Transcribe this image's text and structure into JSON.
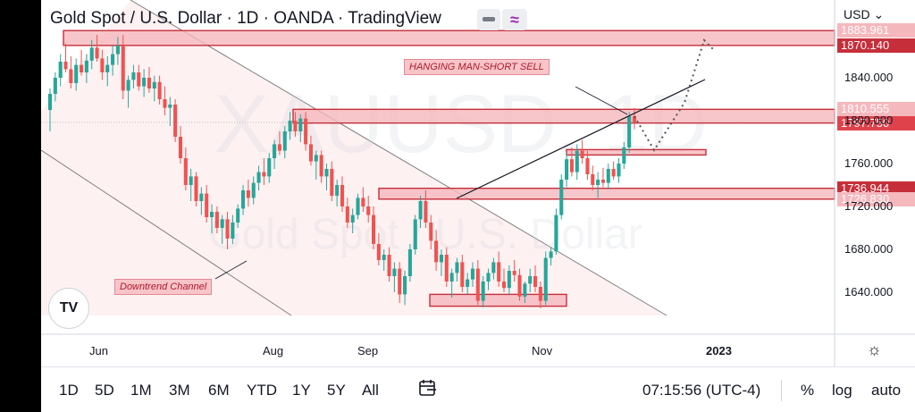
{
  "header": {
    "title": "Gold Spot / U.S. Dollar · 1D · OANDA · TradingView",
    "currency": "USD",
    "watermark_symbol": "XAUUSD, 1D",
    "watermark_name": "Gold Spot / U.S. Dollar"
  },
  "annotations": {
    "hanging_man": "HANGING MAN-SHORT SELL",
    "downtrend": "Downtrend Channel"
  },
  "price_labels": [
    {
      "value": "1883.961",
      "color": "#f5b8bd",
      "text_color": "#ffffff"
    },
    {
      "value": "1870.140",
      "color": "#c62f3a",
      "text_color": "#ffffff"
    },
    {
      "value": "1810.555",
      "color": "#f5b8bd",
      "text_color": "#ffffff"
    },
    {
      "value": "1797.750",
      "color": "#e0424c",
      "text_color": "#ffffff"
    },
    {
      "value": "1736.944",
      "color": "#c62f3a",
      "text_color": "#ffffff"
    },
    {
      "value": "1726.830",
      "color": "#f5b8bd",
      "text_color": "#ffffff"
    }
  ],
  "toolbar": {
    "ranges": [
      "1D",
      "5D",
      "1M",
      "3M",
      "6M",
      "YTD",
      "1Y",
      "5Y",
      "All"
    ],
    "time": "07:15:56 (UTC-4)",
    "percent": "%",
    "log": "log",
    "auto": "auto"
  },
  "chart_data": {
    "type": "candlestick",
    "y_ticks": [
      "1840.000",
      "1800.000",
      "1760.000",
      "1720.000",
      "1680.000",
      "1640.000"
    ],
    "y_tick_values": [
      1840,
      1800,
      1760,
      1720,
      1680,
      1640
    ],
    "x_ticks": [
      "Jun",
      "Aug",
      "Sep",
      "Nov",
      "2023"
    ],
    "colors": {
      "up": "#26a69a",
      "down": "#ef5350",
      "zone": "#f5b8bd",
      "zone_border": "#c62f3a"
    },
    "zones": [
      {
        "low": 1870.14,
        "high": 1883.961
      },
      {
        "low": 1797.75,
        "high": 1810.555
      },
      {
        "low": 1726.83,
        "high": 1736.944
      },
      {
        "low": 1627,
        "high": 1638
      },
      {
        "low": 1768,
        "high": 1773
      }
    ],
    "candles": [
      {
        "o": 1810,
        "h": 1830,
        "l": 1790,
        "c": 1825
      },
      {
        "o": 1825,
        "h": 1845,
        "l": 1818,
        "c": 1840
      },
      {
        "o": 1840,
        "h": 1862,
        "l": 1832,
        "c": 1855
      },
      {
        "o": 1855,
        "h": 1872,
        "l": 1845,
        "c": 1848
      },
      {
        "o": 1848,
        "h": 1860,
        "l": 1830,
        "c": 1835
      },
      {
        "o": 1835,
        "h": 1858,
        "l": 1828,
        "c": 1852
      },
      {
        "o": 1852,
        "h": 1866,
        "l": 1842,
        "c": 1845
      },
      {
        "o": 1845,
        "h": 1862,
        "l": 1835,
        "c": 1856
      },
      {
        "o": 1856,
        "h": 1875,
        "l": 1848,
        "c": 1868
      },
      {
        "o": 1868,
        "h": 1880,
        "l": 1855,
        "c": 1858
      },
      {
        "o": 1858,
        "h": 1866,
        "l": 1838,
        "c": 1845
      },
      {
        "o": 1845,
        "h": 1860,
        "l": 1832,
        "c": 1852
      },
      {
        "o": 1852,
        "h": 1870,
        "l": 1842,
        "c": 1862
      },
      {
        "o": 1862,
        "h": 1878,
        "l": 1852,
        "c": 1870
      },
      {
        "o": 1870,
        "h": 1880,
        "l": 1820,
        "c": 1828
      },
      {
        "o": 1828,
        "h": 1842,
        "l": 1812,
        "c": 1838
      },
      {
        "o": 1838,
        "h": 1852,
        "l": 1830,
        "c": 1845
      },
      {
        "o": 1845,
        "h": 1852,
        "l": 1828,
        "c": 1832
      },
      {
        "o": 1832,
        "h": 1848,
        "l": 1822,
        "c": 1840
      },
      {
        "o": 1840,
        "h": 1850,
        "l": 1826,
        "c": 1830
      },
      {
        "o": 1830,
        "h": 1842,
        "l": 1818,
        "c": 1836
      },
      {
        "o": 1836,
        "h": 1842,
        "l": 1815,
        "c": 1820
      },
      {
        "o": 1820,
        "h": 1832,
        "l": 1805,
        "c": 1812
      },
      {
        "o": 1812,
        "h": 1822,
        "l": 1795,
        "c": 1815
      },
      {
        "o": 1815,
        "h": 1820,
        "l": 1780,
        "c": 1785
      },
      {
        "o": 1785,
        "h": 1795,
        "l": 1760,
        "c": 1765
      },
      {
        "o": 1765,
        "h": 1775,
        "l": 1735,
        "c": 1740
      },
      {
        "o": 1740,
        "h": 1755,
        "l": 1725,
        "c": 1748
      },
      {
        "o": 1748,
        "h": 1752,
        "l": 1720,
        "c": 1725
      },
      {
        "o": 1725,
        "h": 1738,
        "l": 1712,
        "c": 1732
      },
      {
        "o": 1732,
        "h": 1740,
        "l": 1705,
        "c": 1710
      },
      {
        "o": 1710,
        "h": 1722,
        "l": 1695,
        "c": 1715
      },
      {
        "o": 1715,
        "h": 1720,
        "l": 1695,
        "c": 1700
      },
      {
        "o": 1700,
        "h": 1712,
        "l": 1685,
        "c": 1708
      },
      {
        "o": 1708,
        "h": 1715,
        "l": 1680,
        "c": 1690
      },
      {
        "o": 1690,
        "h": 1712,
        "l": 1685,
        "c": 1705
      },
      {
        "o": 1705,
        "h": 1722,
        "l": 1700,
        "c": 1718
      },
      {
        "o": 1718,
        "h": 1740,
        "l": 1712,
        "c": 1735
      },
      {
        "o": 1735,
        "h": 1745,
        "l": 1720,
        "c": 1728
      },
      {
        "o": 1728,
        "h": 1748,
        "l": 1722,
        "c": 1742
      },
      {
        "o": 1742,
        "h": 1758,
        "l": 1735,
        "c": 1752
      },
      {
        "o": 1752,
        "h": 1765,
        "l": 1740,
        "c": 1748
      },
      {
        "o": 1748,
        "h": 1770,
        "l": 1742,
        "c": 1765
      },
      {
        "o": 1765,
        "h": 1782,
        "l": 1755,
        "c": 1778
      },
      {
        "o": 1778,
        "h": 1790,
        "l": 1768,
        "c": 1772
      },
      {
        "o": 1772,
        "h": 1795,
        "l": 1765,
        "c": 1790
      },
      {
        "o": 1790,
        "h": 1808,
        "l": 1782,
        "c": 1800
      },
      {
        "o": 1800,
        "h": 1808,
        "l": 1785,
        "c": 1790
      },
      {
        "o": 1790,
        "h": 1806,
        "l": 1780,
        "c": 1802
      },
      {
        "o": 1802,
        "h": 1808,
        "l": 1772,
        "c": 1778
      },
      {
        "o": 1778,
        "h": 1786,
        "l": 1758,
        "c": 1762
      },
      {
        "o": 1762,
        "h": 1772,
        "l": 1745,
        "c": 1768
      },
      {
        "o": 1768,
        "h": 1772,
        "l": 1742,
        "c": 1748
      },
      {
        "o": 1748,
        "h": 1760,
        "l": 1735,
        "c": 1755
      },
      {
        "o": 1755,
        "h": 1762,
        "l": 1725,
        "c": 1730
      },
      {
        "o": 1730,
        "h": 1745,
        "l": 1720,
        "c": 1740
      },
      {
        "o": 1740,
        "h": 1748,
        "l": 1715,
        "c": 1720
      },
      {
        "o": 1720,
        "h": 1728,
        "l": 1700,
        "c": 1705
      },
      {
        "o": 1705,
        "h": 1718,
        "l": 1695,
        "c": 1712
      },
      {
        "o": 1712,
        "h": 1732,
        "l": 1708,
        "c": 1728
      },
      {
        "o": 1728,
        "h": 1738,
        "l": 1715,
        "c": 1720
      },
      {
        "o": 1720,
        "h": 1730,
        "l": 1705,
        "c": 1712
      },
      {
        "o": 1712,
        "h": 1720,
        "l": 1680,
        "c": 1685
      },
      {
        "o": 1685,
        "h": 1695,
        "l": 1665,
        "c": 1670
      },
      {
        "o": 1670,
        "h": 1680,
        "l": 1660,
        "c": 1675
      },
      {
        "o": 1675,
        "h": 1682,
        "l": 1650,
        "c": 1655
      },
      {
        "o": 1655,
        "h": 1668,
        "l": 1640,
        "c": 1662
      },
      {
        "o": 1662,
        "h": 1668,
        "l": 1630,
        "c": 1638
      },
      {
        "o": 1638,
        "h": 1660,
        "l": 1628,
        "c": 1655
      },
      {
        "o": 1655,
        "h": 1685,
        "l": 1650,
        "c": 1680
      },
      {
        "o": 1680,
        "h": 1712,
        "l": 1675,
        "c": 1708
      },
      {
        "o": 1708,
        "h": 1730,
        "l": 1700,
        "c": 1725
      },
      {
        "o": 1725,
        "h": 1735,
        "l": 1700,
        "c": 1705
      },
      {
        "o": 1705,
        "h": 1712,
        "l": 1680,
        "c": 1688
      },
      {
        "o": 1688,
        "h": 1698,
        "l": 1660,
        "c": 1668
      },
      {
        "o": 1668,
        "h": 1680,
        "l": 1655,
        "c": 1675
      },
      {
        "o": 1675,
        "h": 1682,
        "l": 1645,
        "c": 1650
      },
      {
        "o": 1650,
        "h": 1662,
        "l": 1635,
        "c": 1658
      },
      {
        "o": 1658,
        "h": 1672,
        "l": 1650,
        "c": 1668
      },
      {
        "o": 1668,
        "h": 1675,
        "l": 1640,
        "c": 1645
      },
      {
        "o": 1645,
        "h": 1658,
        "l": 1638,
        "c": 1652
      },
      {
        "o": 1652,
        "h": 1668,
        "l": 1645,
        "c": 1662
      },
      {
        "o": 1662,
        "h": 1670,
        "l": 1628,
        "c": 1632
      },
      {
        "o": 1632,
        "h": 1655,
        "l": 1626,
        "c": 1650
      },
      {
        "o": 1650,
        "h": 1662,
        "l": 1642,
        "c": 1658
      },
      {
        "o": 1658,
        "h": 1672,
        "l": 1652,
        "c": 1668
      },
      {
        "o": 1668,
        "h": 1678,
        "l": 1645,
        "c": 1650
      },
      {
        "o": 1650,
        "h": 1662,
        "l": 1640,
        "c": 1644
      },
      {
        "o": 1644,
        "h": 1665,
        "l": 1638,
        "c": 1660
      },
      {
        "o": 1660,
        "h": 1670,
        "l": 1650,
        "c": 1656
      },
      {
        "o": 1656,
        "h": 1662,
        "l": 1632,
        "c": 1636
      },
      {
        "o": 1636,
        "h": 1650,
        "l": 1630,
        "c": 1648
      },
      {
        "o": 1648,
        "h": 1662,
        "l": 1640,
        "c": 1655
      },
      {
        "o": 1655,
        "h": 1665,
        "l": 1640,
        "c": 1645
      },
      {
        "o": 1645,
        "h": 1650,
        "l": 1625,
        "c": 1632
      },
      {
        "o": 1632,
        "h": 1678,
        "l": 1628,
        "c": 1672
      },
      {
        "o": 1672,
        "h": 1682,
        "l": 1665,
        "c": 1678
      },
      {
        "o": 1678,
        "h": 1718,
        "l": 1675,
        "c": 1712
      },
      {
        "o": 1712,
        "h": 1750,
        "l": 1708,
        "c": 1745
      },
      {
        "o": 1745,
        "h": 1770,
        "l": 1738,
        "c": 1764
      },
      {
        "o": 1764,
        "h": 1775,
        "l": 1748,
        "c": 1752
      },
      {
        "o": 1752,
        "h": 1778,
        "l": 1745,
        "c": 1772
      },
      {
        "o": 1772,
        "h": 1782,
        "l": 1760,
        "c": 1765
      },
      {
        "o": 1765,
        "h": 1772,
        "l": 1745,
        "c": 1750
      },
      {
        "o": 1750,
        "h": 1758,
        "l": 1735,
        "c": 1740
      },
      {
        "o": 1740,
        "h": 1752,
        "l": 1728,
        "c": 1745
      },
      {
        "o": 1745,
        "h": 1756,
        "l": 1738,
        "c": 1742
      },
      {
        "o": 1742,
        "h": 1760,
        "l": 1736,
        "c": 1755
      },
      {
        "o": 1755,
        "h": 1762,
        "l": 1745,
        "c": 1748
      },
      {
        "o": 1748,
        "h": 1765,
        "l": 1742,
        "c": 1760
      },
      {
        "o": 1760,
        "h": 1780,
        "l": 1755,
        "c": 1775
      },
      {
        "o": 1775,
        "h": 1808,
        "l": 1770,
        "c": 1804
      },
      {
        "o": 1804,
        "h": 1812,
        "l": 1792,
        "c": 1798
      }
    ]
  }
}
